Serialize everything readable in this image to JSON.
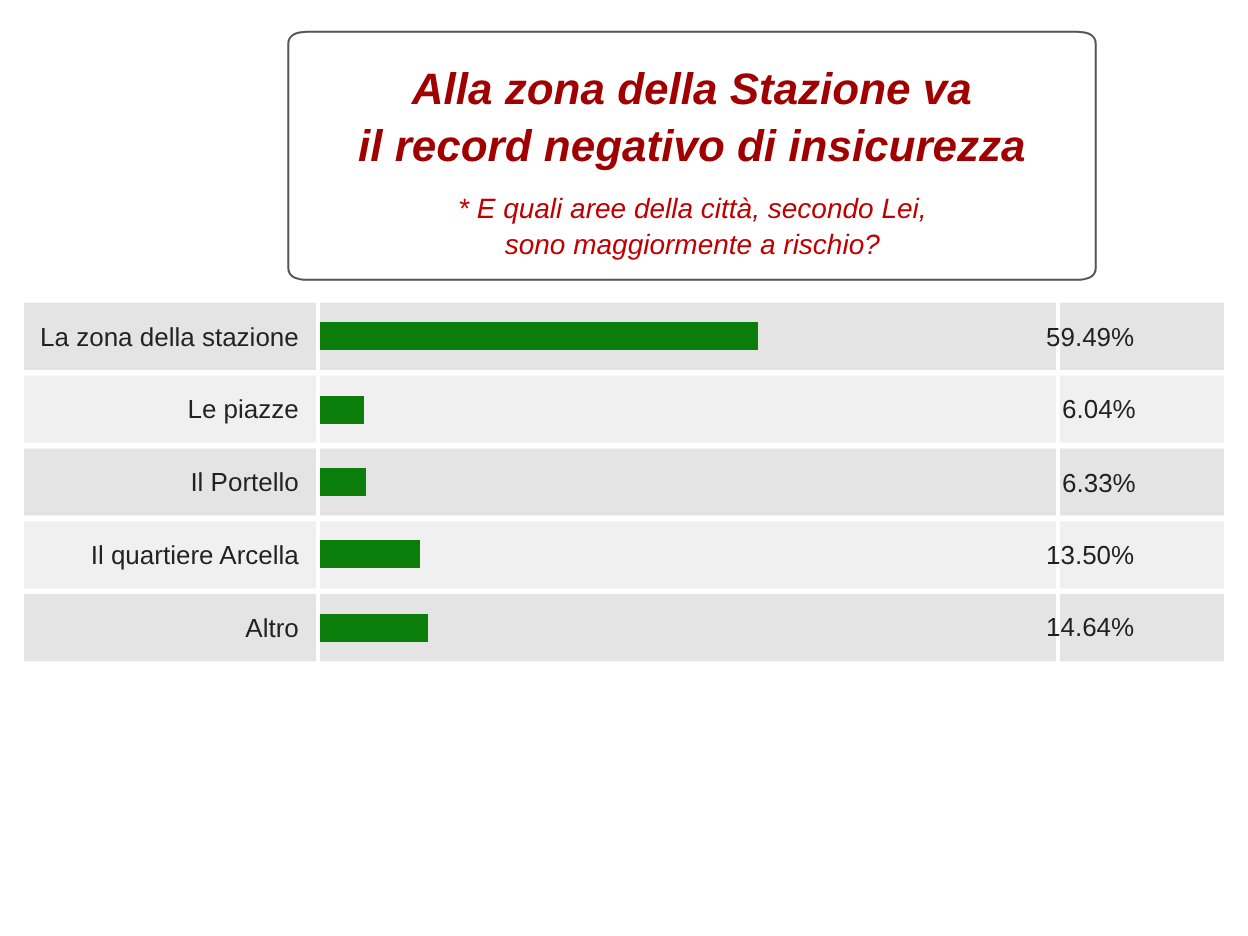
{
  "chart_data": {
    "type": "bar",
    "orientation": "horizontal",
    "title": "Alla zona della Stazione va\nil record negativo di insicurezza",
    "subtitle": "* E quali aree della città, secondo Lei,\nsono maggiormente a rischio?",
    "categories": [
      "La zona della stazione",
      "Le piazze",
      "Il Portello",
      "Il quartiere Arcella",
      "Altro"
    ],
    "values": [
      59.49,
      6.04,
      6.33,
      13.5,
      14.64
    ],
    "value_labels": [
      "59.49%",
      "6.04%",
      "6.33%",
      "13.50%",
      "14.64%"
    ],
    "color": "#0a7d0a",
    "xlim": [
      0,
      100
    ],
    "tick_labels": "y",
    "grid": false,
    "legend": false
  }
}
